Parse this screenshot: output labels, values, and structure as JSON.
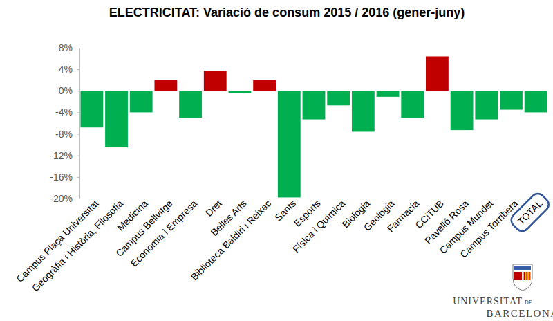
{
  "chart_data": {
    "type": "bar",
    "title": "ELECTRICITAT: Variació de consum 2015 / 2016 (gener-juny)",
    "categories": [
      "Campus Plaça Universitat",
      "Geogràfia i Història, Filosofia",
      "Medicina",
      "Campus Bellvitge",
      "Economia i Empresa",
      "Dret",
      "Belles Arts",
      "Biblioteca Baldiri i Reixac",
      "Sants",
      "Esports",
      "Física i Química",
      "Biologia",
      "Geologia",
      "Farmacia",
      "CCiTUB",
      "Pavelló Rosa",
      "Campus Mundet",
      "Campus Torribera",
      "TOTAL"
    ],
    "values": [
      -6.8,
      -10.5,
      -4.0,
      2.0,
      -5.0,
      3.7,
      -0.4,
      2.0,
      -19.8,
      -5.3,
      -2.7,
      -7.6,
      -1.1,
      -5.0,
      6.4,
      -7.3,
      -5.3,
      -3.5,
      -4.0
    ],
    "colors": [
      "#00b050",
      "#00b050",
      "#00b050",
      "#c00000",
      "#00b050",
      "#c00000",
      "#00b050",
      "#c00000",
      "#00b050",
      "#00b050",
      "#00b050",
      "#00b050",
      "#00b050",
      "#00b050",
      "#c00000",
      "#00b050",
      "#00b050",
      "#00b050",
      "#00b050"
    ],
    "ylim": [
      -20,
      8
    ],
    "yticks": [
      {
        "value": -20,
        "label": "-20%"
      },
      {
        "value": -16,
        "label": "-16%"
      },
      {
        "value": -12,
        "label": "-12%"
      },
      {
        "value": -8,
        "label": "-8%"
      },
      {
        "value": -4,
        "label": "-4%"
      },
      {
        "value": 0,
        "label": "0%"
      },
      {
        "value": 4,
        "label": "4%"
      },
      {
        "value": 8,
        "label": "8%"
      }
    ],
    "grid": false,
    "annotations": [
      "UNIVERSITAT",
      "DE",
      "BARCELONA"
    ]
  }
}
